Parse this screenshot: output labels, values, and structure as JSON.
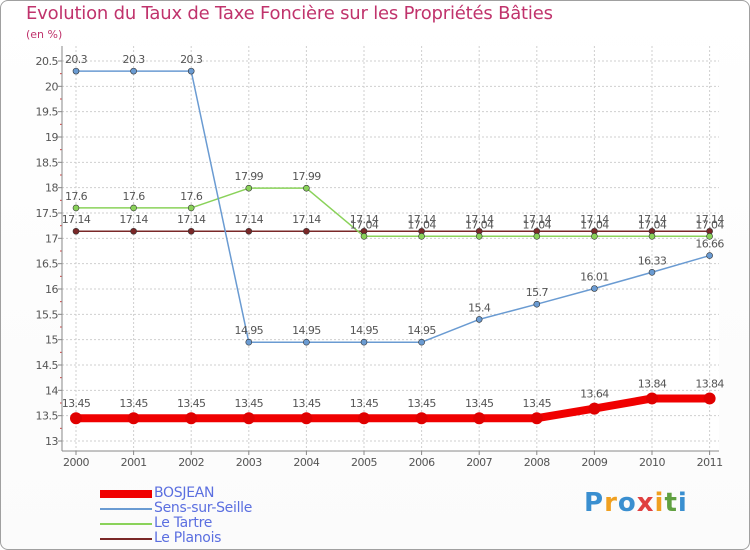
{
  "title": "Evolution du Taux de Taxe Foncière sur les Propriétés Bâties",
  "subtitle": "(en %)",
  "brand": {
    "text": "Proxiti",
    "colors": [
      "#3a8fd0",
      "#f0a020",
      "#3a8fd0",
      "#e04040",
      "#f0a020",
      "#60a040",
      "#3a8fd0"
    ]
  },
  "chart_data": {
    "type": "line",
    "title": "Evolution du Taux de Taxe Foncière sur les Propriétés Bâties",
    "ylabel": "(en %)",
    "xlabel": "",
    "categories": [
      "2000",
      "2001",
      "2002",
      "2003",
      "2004",
      "2005",
      "2006",
      "2007",
      "2008",
      "2009",
      "2010",
      "2011"
    ],
    "ylim": [
      13,
      20.5
    ],
    "yticks": [
      "13",
      "13.5",
      "14",
      "14.5",
      "15",
      "15.5",
      "16",
      "16.5",
      "17",
      "17.5",
      "18",
      "18.5",
      "19",
      "19.5",
      "20",
      "20.5"
    ],
    "grid": true,
    "legend_position": "bottom-left",
    "series": [
      {
        "name": "Le Planois",
        "color": "#7a2828",
        "width": 1.5,
        "point": 3,
        "labelAbove": true,
        "values": [
          17.14,
          17.14,
          17.14,
          17.14,
          17.14,
          17.14,
          17.14,
          17.14,
          17.14,
          17.14,
          17.14,
          17.14
        ],
        "labels": [
          "17.14",
          "17.14",
          "17.14",
          "17.14",
          "17.14",
          "17.14",
          "17.14",
          "17.14",
          "17.14",
          "17.14",
          "17.14",
          "17.14"
        ]
      },
      {
        "name": "Le Tartre",
        "color": "#8ad25a",
        "width": 1.5,
        "point": 3,
        "labelAbove": true,
        "values": [
          17.6,
          17.6,
          17.6,
          17.99,
          17.99,
          17.04,
          17.04,
          17.04,
          17.04,
          17.04,
          17.04,
          17.04
        ],
        "labels": [
          "17.6",
          "17.6",
          "17.6",
          "17.99",
          "17.99",
          "17.04",
          "17.04",
          "17.04",
          "17.04",
          "17.04",
          "17.04",
          "17.04"
        ]
      },
      {
        "name": "Sens-sur-Seille",
        "color": "#6a9bd2",
        "width": 1.5,
        "point": 3,
        "labelAbove": true,
        "values": [
          20.3,
          20.3,
          20.3,
          14.95,
          14.95,
          14.95,
          14.95,
          15.4,
          15.7,
          16.01,
          16.33,
          16.66
        ],
        "labels": [
          "20.3",
          "20.3",
          "20.3",
          "14.95",
          "14.95",
          "14.95",
          "14.95",
          "15.4",
          "15.7",
          "16.01",
          "16.33",
          "16.66"
        ]
      },
      {
        "name": "BOSJEAN",
        "color": "#f00000",
        "width": 8,
        "point": 6,
        "labelAbove": true,
        "values": [
          13.45,
          13.45,
          13.45,
          13.45,
          13.45,
          13.45,
          13.45,
          13.45,
          13.45,
          13.64,
          13.84,
          13.84
        ],
        "labels": [
          "13.45",
          "13.45",
          "13.45",
          "13.45",
          "13.45",
          "13.45",
          "13.45",
          "13.45",
          "13.45",
          "13.64",
          "13.84",
          "13.84"
        ]
      }
    ],
    "legend": [
      {
        "name": "BOSJEAN",
        "color": "#f00000",
        "width": 8
      },
      {
        "name": "Sens-sur-Seille",
        "color": "#6a9bd2",
        "width": 2
      },
      {
        "name": "Le Tartre",
        "color": "#8ad25a",
        "width": 2
      },
      {
        "name": "Le Planois",
        "color": "#7a2828",
        "width": 2
      }
    ]
  }
}
